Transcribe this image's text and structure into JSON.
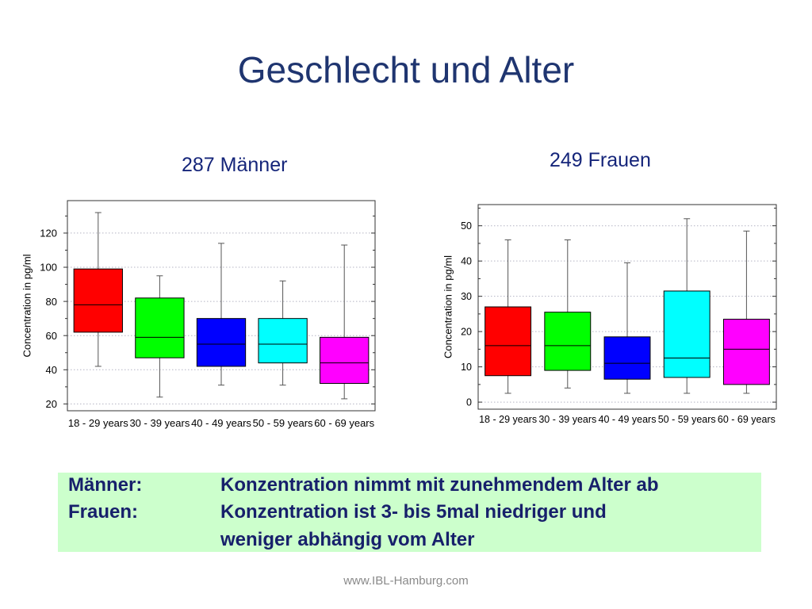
{
  "slide": {
    "title": "Geschlecht und Alter",
    "footer": "www.IBL-Hamburg.com"
  },
  "summary": {
    "background": "#ccffcc",
    "rows": [
      {
        "label": "Männer:",
        "text": "Konzentration nimmt mit zunehmendem Alter ab"
      },
      {
        "label": "Frauen:",
        "text": "Konzentration ist 3- bis 5mal niedriger und"
      },
      {
        "text": "weniger abhängig vom Alter"
      }
    ]
  },
  "chart_data": [
    {
      "type": "box",
      "title": "287 Männer",
      "ylabel": "Concentration in pg/ml",
      "categories": [
        "18 - 29 years",
        "30 - 39 years",
        "40 - 49 years",
        "50 - 59 years",
        "60 - 69 years"
      ],
      "colors": [
        "#ff0000",
        "#00ff00",
        "#0000ff",
        "#00ffff",
        "#ff00ff"
      ],
      "boxes": [
        {
          "whisker_low": 42,
          "q1": 62,
          "median": 78,
          "q3": 99,
          "whisker_high": 132
        },
        {
          "whisker_low": 24,
          "q1": 47,
          "median": 59,
          "q3": 82,
          "whisker_high": 95
        },
        {
          "whisker_low": 31,
          "q1": 42,
          "median": 55,
          "q3": 70,
          "whisker_high": 114
        },
        {
          "whisker_low": 31,
          "q1": 44,
          "median": 55,
          "q3": 70,
          "whisker_high": 92
        },
        {
          "whisker_low": 23,
          "q1": 32,
          "median": 44,
          "q3": 59,
          "whisker_high": 113
        }
      ],
      "yticks": [
        20,
        40,
        60,
        80,
        100,
        120
      ],
      "ylim": [
        16,
        139
      ],
      "grid": true
    },
    {
      "type": "box",
      "title": "249 Frauen",
      "ylabel": "Concentration in pg/ml",
      "categories": [
        "18 - 29 years",
        "30 - 39 years",
        "40 - 49 years",
        "50 - 59 years",
        "60 - 69 years"
      ],
      "colors": [
        "#ff0000",
        "#00ff00",
        "#0000ff",
        "#00ffff",
        "#ff00ff"
      ],
      "boxes": [
        {
          "whisker_low": 2.5,
          "q1": 7.5,
          "median": 16,
          "q3": 27,
          "whisker_high": 46
        },
        {
          "whisker_low": 4,
          "q1": 9,
          "median": 16,
          "q3": 25.5,
          "whisker_high": 46
        },
        {
          "whisker_low": 2.5,
          "q1": 6.5,
          "median": 11,
          "q3": 18.5,
          "whisker_high": 39.5
        },
        {
          "whisker_low": 2.5,
          "q1": 7,
          "median": 12.5,
          "q3": 31.5,
          "whisker_high": 52
        },
        {
          "whisker_low": 2.5,
          "q1": 5,
          "median": 15,
          "q3": 23.5,
          "whisker_high": 48.5
        }
      ],
      "yticks": [
        0,
        10,
        20,
        30,
        40,
        50
      ],
      "ylim": [
        -2,
        56
      ],
      "grid": true
    }
  ]
}
